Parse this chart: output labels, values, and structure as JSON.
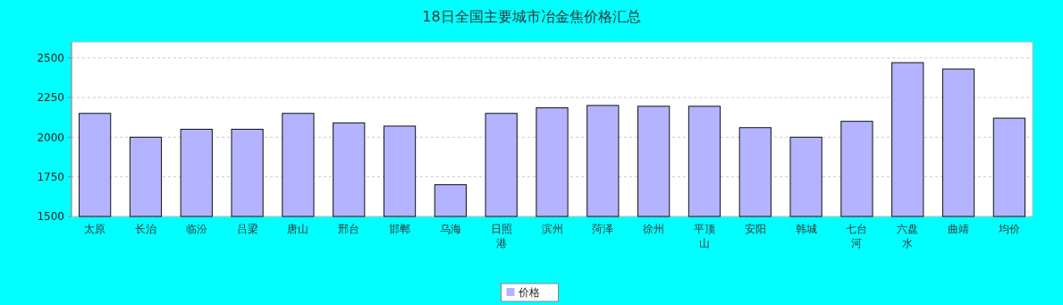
{
  "chart_data": {
    "type": "bar",
    "title": "18日全国主要城市冶金焦价格汇总",
    "categories": [
      "太原",
      "长治",
      "临汾",
      "吕梁",
      "唐山",
      "邢台",
      "邯郸",
      "乌海",
      "日照港",
      "滨州",
      "菏泽",
      "徐州",
      "平顶山",
      "安阳",
      "韩城",
      "七台河",
      "六盘水",
      "曲靖",
      "均价"
    ],
    "series": [
      {
        "name": "价格",
        "color": "#b3b3ff",
        "values": [
          2150,
          2000,
          2050,
          2050,
          2150,
          2090,
          2070,
          1700,
          2150,
          2185,
          2200,
          2195,
          2195,
          2060,
          2000,
          2100,
          2470,
          2430,
          2120
        ]
      }
    ],
    "ylim": [
      1500,
      2600
    ],
    "yticks": [
      1500,
      1750,
      2000,
      2250,
      2500
    ],
    "grid": "y",
    "legend": "bottom"
  }
}
